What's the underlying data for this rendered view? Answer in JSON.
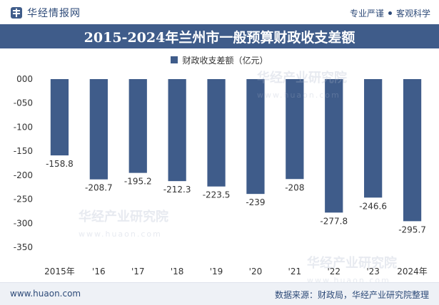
{
  "header": {
    "brand": "华经情报网",
    "tagline_left": "专业严谨",
    "tagline_right": "客观科学"
  },
  "chart_data": {
    "type": "bar",
    "title": "2015-2024年兰州市一般预算财政收支差额",
    "categories": [
      "2015年",
      "'16",
      "'17",
      "'18",
      "'19",
      "'20",
      "'21",
      "'22",
      "'23",
      "2024年"
    ],
    "series": [
      {
        "name": "财政收支差额（亿元）",
        "values": [
          -158.8,
          -208.7,
          -195.2,
          -212.3,
          -223.5,
          -239,
          -208,
          -277.8,
          -246.6,
          -295.7
        ]
      }
    ],
    "value_labels": [
      "-158.8",
      "-208.7",
      "-195.2",
      "-212.3",
      "-223.5",
      "-239",
      "-208",
      "-277.8",
      "-246.6",
      "-295.7"
    ],
    "yticks": [
      "000",
      "-050",
      "-100",
      "-150",
      "-200",
      "-250",
      "-300",
      "-350"
    ],
    "ylim": [
      -350,
      0
    ],
    "legend_position": "top-center",
    "grid": false,
    "bar_color": "#3f5c8a"
  },
  "footer": {
    "website": "www.huaon.com",
    "source": "数据来源：财政局，华经产业研究院整理"
  },
  "watermark": {
    "text": "华经产业研究院",
    "url": "www.huaon.com"
  }
}
